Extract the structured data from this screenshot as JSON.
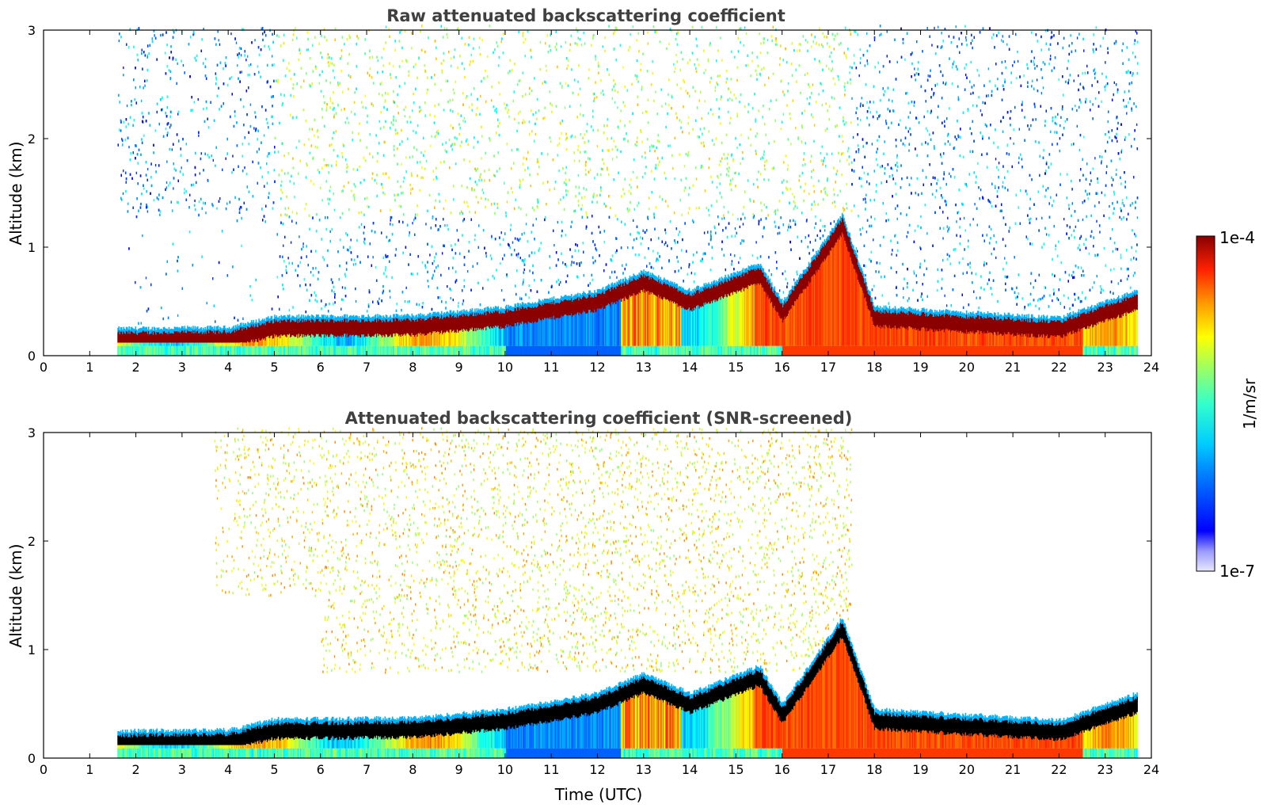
{
  "chart_data": [
    {
      "type": "heatmap",
      "title": "Raw attenuated backscattering coefficient",
      "xlabel": "",
      "ylabel": "Altitude (km)",
      "xlim": [
        0,
        24
      ],
      "ylim": [
        0,
        3
      ],
      "x_ticks": [
        "0",
        "1",
        "2",
        "3",
        "4",
        "5",
        "6",
        "7",
        "8",
        "9",
        "10",
        "11",
        "12",
        "13",
        "14",
        "15",
        "16",
        "17",
        "18",
        "19",
        "20",
        "21",
        "22",
        "23",
        "24"
      ],
      "y_ticks": [
        "0",
        "1",
        "2",
        "3"
      ],
      "data_start_hour": 1.6,
      "data_end_hour": 23.7,
      "boundary_layer_top_km": [
        {
          "t": 1.6,
          "h": 0.25
        },
        {
          "t": 4.0,
          "h": 0.26
        },
        {
          "t": 5.0,
          "h": 0.36
        },
        {
          "t": 8.0,
          "h": 0.37
        },
        {
          "t": 10.0,
          "h": 0.45
        },
        {
          "t": 12.0,
          "h": 0.6
        },
        {
          "t": 13.0,
          "h": 0.78
        },
        {
          "t": 14.0,
          "h": 0.6
        },
        {
          "t": 15.5,
          "h": 0.85
        },
        {
          "t": 16.0,
          "h": 0.5
        },
        {
          "t": 17.3,
          "h": 1.3
        },
        {
          "t": 18.0,
          "h": 0.45
        },
        {
          "t": 20.0,
          "h": 0.4
        },
        {
          "t": 22.0,
          "h": 0.35
        },
        {
          "t": 23.7,
          "h": 0.6
        }
      ],
      "snr_screened": false
    },
    {
      "type": "heatmap",
      "title": "Attenuated backscattering coefficient (SNR-screened)",
      "xlabel": "Time (UTC)",
      "ylabel": "Altitude (km)",
      "xlim": [
        0,
        24
      ],
      "ylim": [
        0,
        3
      ],
      "x_ticks": [
        "0",
        "1",
        "2",
        "3",
        "4",
        "5",
        "6",
        "7",
        "8",
        "9",
        "10",
        "11",
        "12",
        "13",
        "14",
        "15",
        "16",
        "17",
        "18",
        "19",
        "20",
        "21",
        "22",
        "23",
        "24"
      ],
      "y_ticks": [
        "0",
        "1",
        "2",
        "3"
      ],
      "data_start_hour": 1.6,
      "data_end_hour": 23.7,
      "snr_screened": true
    }
  ],
  "colorbar": {
    "max_label": "1e-4",
    "min_label": "1e-7",
    "unit_label": "1/m/sr",
    "colormap": "jet"
  }
}
